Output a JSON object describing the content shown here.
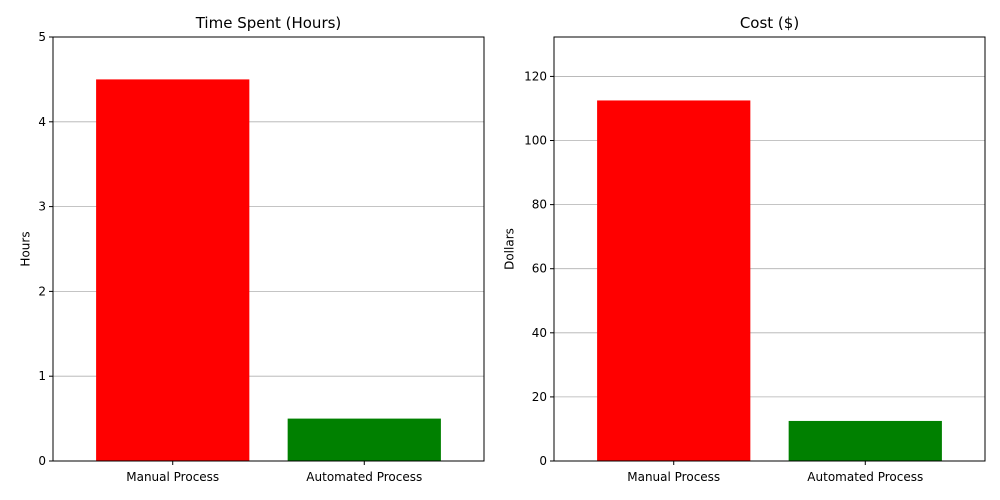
{
  "chart_data": [
    {
      "type": "bar",
      "title": "Time Spent (Hours)",
      "xlabel": "",
      "ylabel": "Hours",
      "categories": [
        "Manual Process",
        "Automated Process"
      ],
      "values": [
        4.5,
        0.5
      ],
      "colors": [
        "#ff0000",
        "#008000"
      ],
      "ylim": [
        0,
        5
      ],
      "yticks": [
        0,
        1,
        2,
        3,
        4,
        5
      ],
      "grid": "y"
    },
    {
      "type": "bar",
      "title": "Cost ($)",
      "xlabel": "",
      "ylabel": "Dollars",
      "categories": [
        "Manual Process",
        "Automated Process"
      ],
      "values": [
        112.5,
        12.5
      ],
      "colors": [
        "#ff0000",
        "#008000"
      ],
      "ylim": [
        0,
        132.3
      ],
      "yticks": [
        0,
        20,
        40,
        60,
        80,
        100,
        120
      ],
      "grid": "y"
    }
  ]
}
